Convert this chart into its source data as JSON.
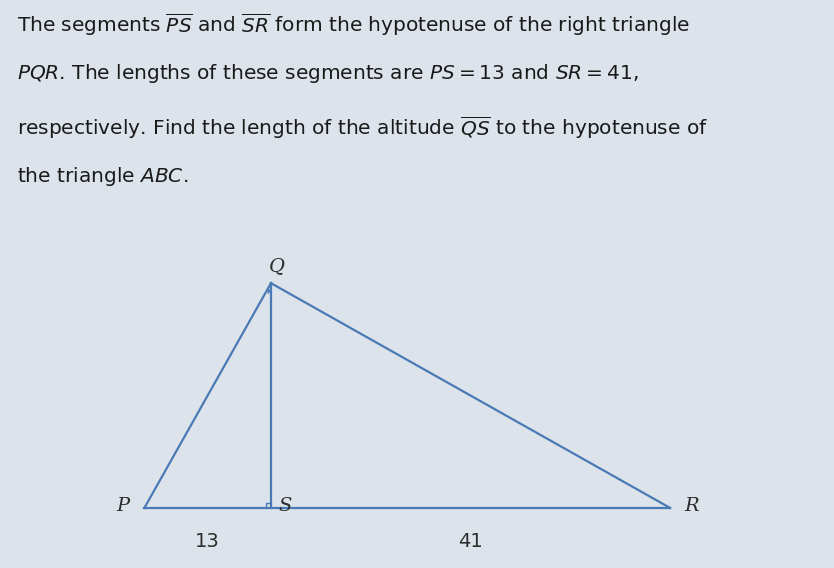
{
  "PS": 13,
  "SR": 41,
  "text_color": "#2d2d2d",
  "triangle_color": "#4a7ab5",
  "altitude_color": "#4a7ab5",
  "bg_color": "#dce3ea",
  "title_text_color": "#1a1a1a",
  "label_P": "P",
  "label_Q": "Q",
  "label_R": "R",
  "label_S": "S",
  "label_13": "13",
  "label_41": "41",
  "title_fontsize": 14.5,
  "label_fontsize": 14.0,
  "dim_fontsize": 14.0,
  "line_width": 1.6,
  "sq_size_S": 0.55,
  "sq_size_Q": 0.55
}
